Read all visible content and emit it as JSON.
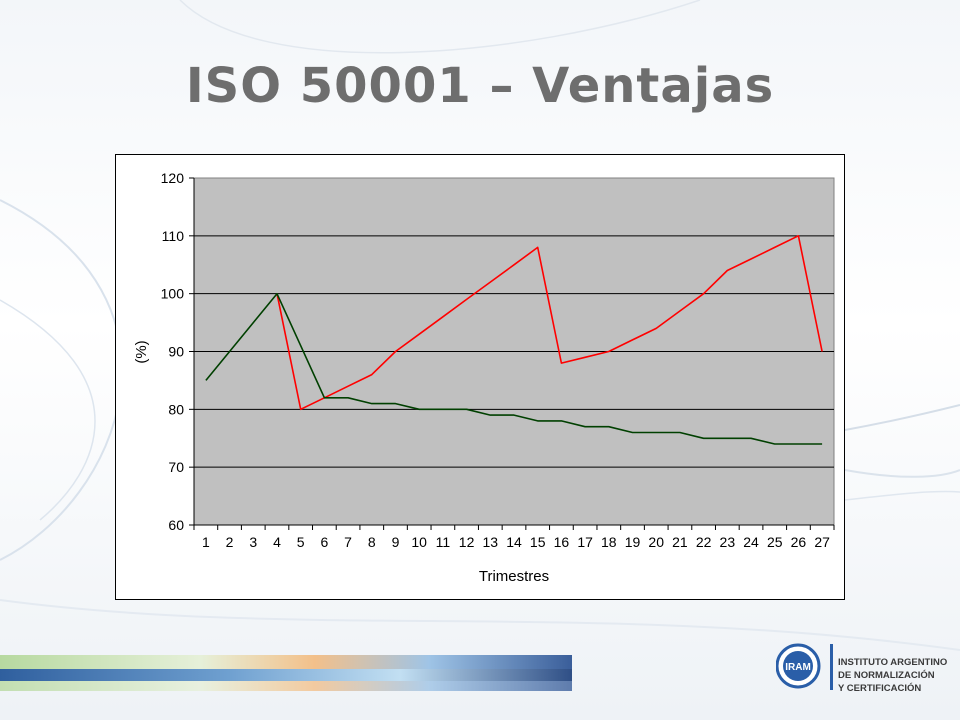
{
  "slide": {
    "title": "ISO 50001 – Ventajas"
  },
  "logo": {
    "mark_text": "IRAM",
    "line1": "INSTITUTO ARGENTINO",
    "line2": "DE NORMALIZACIÓN",
    "line3": "Y CERTIFICACIÓN"
  },
  "colors": {
    "title": "#6e6e6e",
    "plot_area": "#c0c0c0",
    "series_red": "#ff0000",
    "series_green": "#004000",
    "logo_blue": "#2a5ea8"
  },
  "chart_data": {
    "type": "line",
    "title": "",
    "xlabel": "Trimestres",
    "ylabel": "(%)",
    "ylim": [
      60,
      120
    ],
    "yticks": [
      60,
      70,
      80,
      90,
      100,
      110,
      120
    ],
    "grid": true,
    "legend": "none",
    "categories": [
      "1",
      "2",
      "3",
      "4",
      "5",
      "6",
      "7",
      "8",
      "9",
      "10",
      "11",
      "12",
      "13",
      "14",
      "15",
      "16",
      "17",
      "18",
      "19",
      "20",
      "21",
      "22",
      "23",
      "24",
      "25",
      "26",
      "27"
    ],
    "series": [
      {
        "color": "#ff0000",
        "x": [
          4,
          5,
          6,
          7,
          8,
          9,
          10,
          11,
          12,
          13,
          14,
          15,
          16,
          17,
          18,
          19,
          20,
          21,
          22,
          23,
          24,
          25,
          26,
          27
        ],
        "values": [
          100,
          80,
          82,
          84,
          86,
          90,
          93,
          96,
          99,
          102,
          105,
          108,
          88,
          89,
          90,
          92,
          94,
          97,
          100,
          104,
          106,
          108,
          110,
          90
        ]
      },
      {
        "color": "#004000",
        "x": [
          1,
          2,
          3,
          4,
          5,
          6,
          7,
          8,
          9,
          10,
          11,
          12,
          13,
          14,
          15,
          16,
          17,
          18,
          19,
          20,
          21,
          22,
          23,
          24,
          25,
          26,
          27
        ],
        "values": [
          85,
          90,
          95,
          100,
          91,
          82,
          82,
          81,
          81,
          80,
          80,
          80,
          79,
          79,
          78,
          78,
          77,
          77,
          76,
          76,
          76,
          75,
          75,
          75,
          74,
          74,
          74
        ]
      }
    ]
  }
}
